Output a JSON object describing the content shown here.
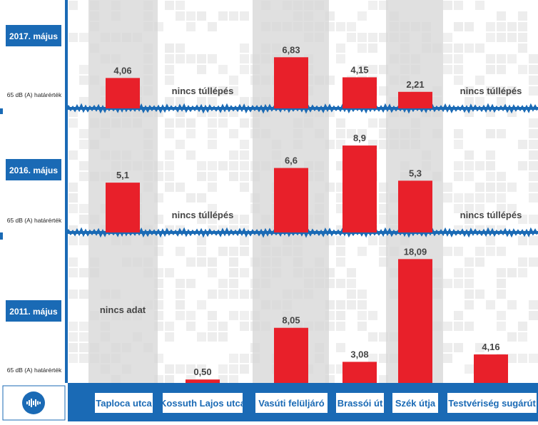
{
  "colors": {
    "accent": "#1a6ab5",
    "bar": "#e8202a",
    "column_shade": "#d6d6d6",
    "pixel": "#ececec",
    "text": "#444444"
  },
  "icon": "sound-wave-icon",
  "chart_data": {
    "type": "bar",
    "categories": [
      "Taploca utca",
      "Kossuth Lajos utca",
      "Vasúti felüljáró",
      "Brassói út",
      "Szék útja",
      "Testvériség sugárút"
    ],
    "ylabel": "65 dB (A) határérték",
    "panels": [
      {
        "name": "2017. május",
        "values": [
          4.06,
          null,
          6.83,
          4.15,
          2.21,
          null
        ],
        "labels": [
          "4,06",
          "nincs túllépés",
          "6,83",
          "4,15",
          "2,21",
          "nincs túllépés"
        ]
      },
      {
        "name": "2016. május",
        "values": [
          5.1,
          null,
          6.6,
          8.9,
          5.3,
          null
        ],
        "labels": [
          "5,1",
          "nincs túllépés",
          "6,6",
          "8,9",
          "5,3",
          "nincs túllépés"
        ]
      },
      {
        "name": "2011. május",
        "values": [
          null,
          0.5,
          8.05,
          3.08,
          18.09,
          4.16
        ],
        "labels": [
          "nincs adat",
          "0,50",
          "8,05",
          "3,08",
          "18,09",
          "4,16"
        ]
      }
    ]
  }
}
